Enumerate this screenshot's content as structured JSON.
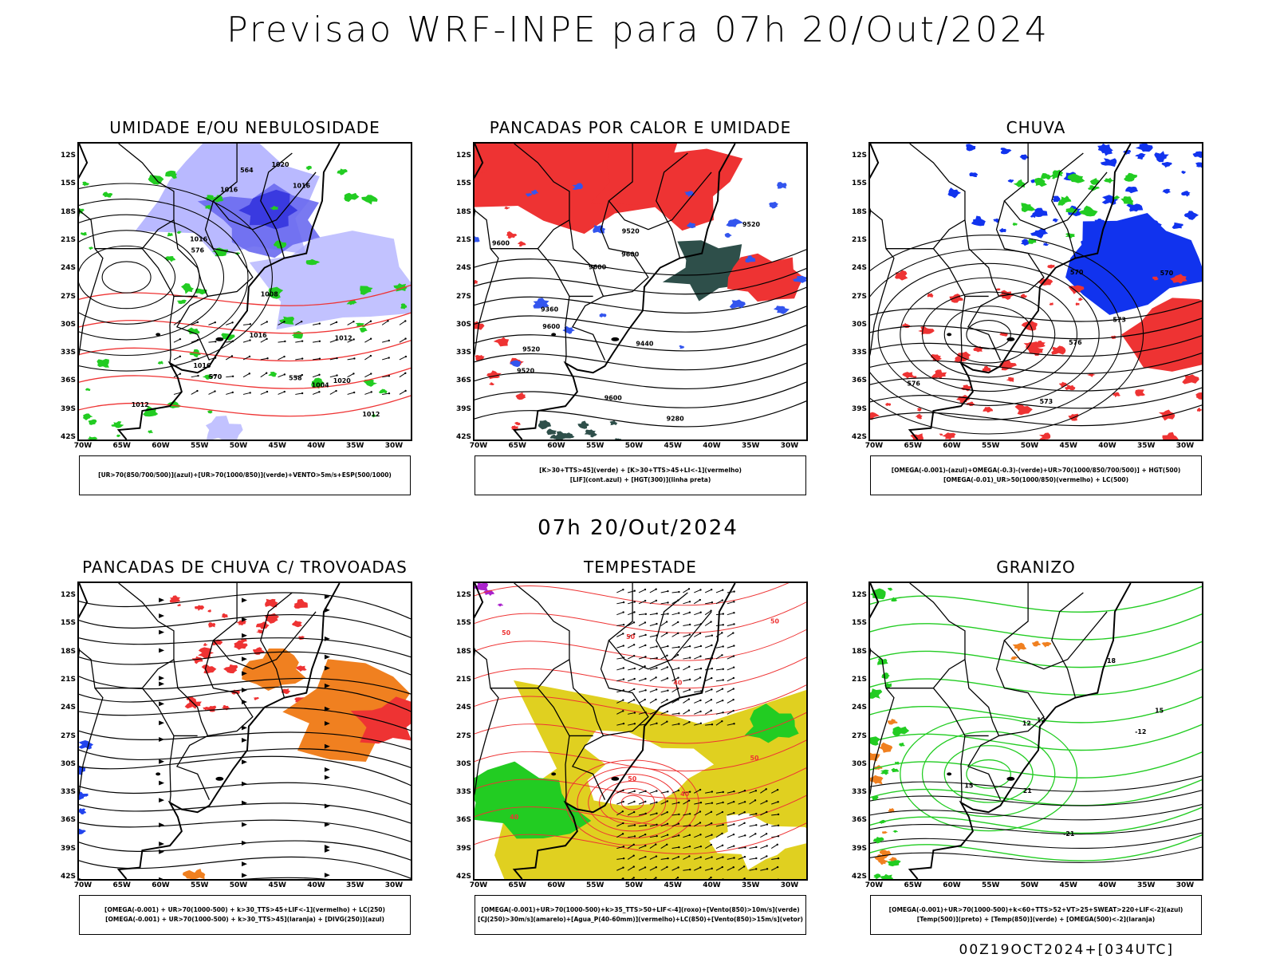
{
  "title": "Previsao WRF-INPE  para 07h 20/Out/2024",
  "mid_title": "07h 20/Out/2024",
  "footer": "00Z19OCT2024+[034UTC]",
  "lat_labels": [
    "12S",
    "15S",
    "18S",
    "21S",
    "24S",
    "27S",
    "30S",
    "33S",
    "36S",
    "39S",
    "42S"
  ],
  "lon_labels": [
    "70W",
    "65W",
    "60W",
    "55W",
    "50W",
    "45W",
    "40W",
    "35W",
    "30W"
  ],
  "panels": [
    {
      "title": "UMIDADE E/OU NEBULOSIDADE",
      "legend": [
        "[UR>70(850/700/500)](azul)+[UR>70(1000/850)](verde)+VENTO>5m/s+ESP(500/1000)"
      ],
      "contour_labels": [
        "1012",
        "1012",
        "1008",
        "1016",
        "1016",
        "1020",
        "1020",
        "1016",
        "1004",
        "1016",
        "1012",
        "576",
        "570",
        "564",
        "558",
        "1016"
      ]
    },
    {
      "title": "PANCADAS POR CALOR E UMIDADE",
      "legend": [
        "[K>30+TTS>45](verde) + [K>30+TTS>45+LI<-1](vermelho)",
        "[LIF](cont.azul) + [HGT(300)](linha preta)"
      ],
      "contour_labels": [
        "9600",
        "9600",
        "9600",
        "9600",
        "9520",
        "9600",
        "9520",
        "9520",
        "9440",
        "9360",
        "9280",
        "9520"
      ]
    },
    {
      "title": "CHUVA",
      "legend": [
        "[OMEGA(-0.001)-(azul)+OMEGA(-0.3)-(verde)+UR>70(1000/850/700/500)] + HGT(500)",
        "[OMEGA(-0.01)_UR>50(1000/850)(vermelho) + LC(500)"
      ],
      "contour_labels": [
        "576",
        "576",
        "573",
        "570",
        "570",
        "573"
      ]
    },
    {
      "title": "PANCADAS DE CHUVA C/ TROVOADAS",
      "legend": [
        "[OMEGA(-0.001) + UR>70(1000-500) + k>30_TTS>45+LIF<-1](vermelho) + LC(250)",
        "[OMEGA(-0.001) + UR>70(1000-500) + k>30_TTS>45](laranja) + [DIVG(250)](azul)"
      ],
      "contour_labels": []
    },
    {
      "title": "TEMPESTADE",
      "legend": [
        "[OMEGA(-0.001)+UR>70(1000-500)+k>35_TTS>50+LIF<-4](roxo)+[Vento(850)>10m/s](verde)",
        "[CJ(250)>30m/s](amarelo)+[Agua_P(40-60mm)](vermelho)+LC(850)+[Vento(850)>15m/s](vetor)"
      ],
      "contour_labels": [
        "50",
        "40",
        "40",
        "50",
        "50",
        "40",
        "50",
        "50"
      ]
    },
    {
      "title": "GRANIZO",
      "legend": [
        "[OMEGA(-0.001)+UR>70(1000-500)+k<60+TTS>52+VT>25+SWEAT>220+LIF<-2](azul)",
        "[Temp(500)](preto) + [Temp(850)](verde) + [OMEGA(500)<-2](laranja)"
      ],
      "contour_labels": [
        "-12",
        "-21",
        "12",
        "15",
        "15",
        "12",
        "18",
        "21"
      ]
    }
  ],
  "colors": {
    "blue_light": "#a8a8ff",
    "blue_mid": "#6a6af0",
    "blue_dark": "#3a3ae0",
    "green": "#22cc22",
    "red": "#ee3333",
    "teal": "#2e4f4a",
    "orange": "#f08020",
    "yellow": "#e0d020",
    "purple": "#aa22cc"
  }
}
